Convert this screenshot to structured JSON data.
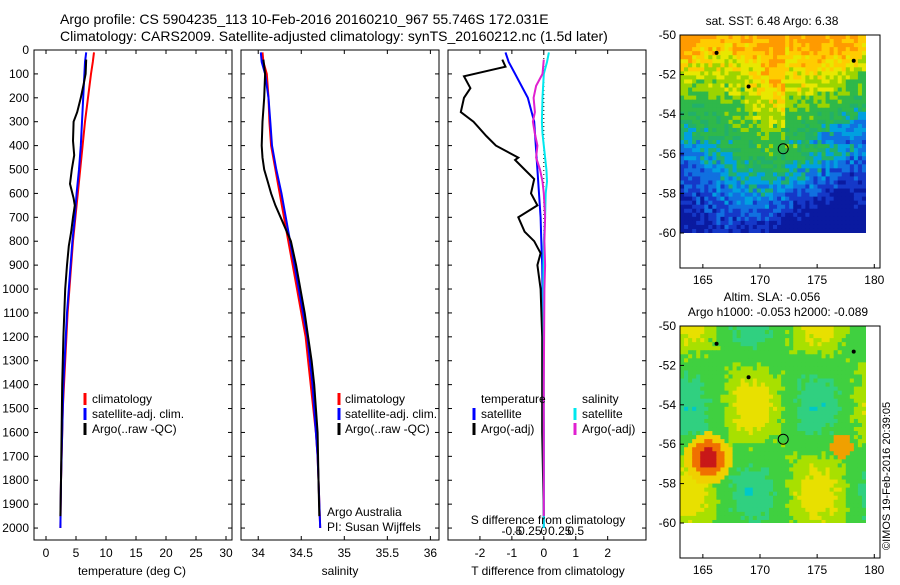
{
  "header": {
    "line1": "Argo profile: CS 5904235_113 10-Feb-2016 20160210_967 55.746S 172.031E",
    "line2": "Climatology: CARS2009. Satellite-adjusted climatology: synTS_20160212.nc (1.5d later)"
  },
  "colors": {
    "climatology": "#ff0000",
    "satellite": "#0000ff",
    "argo": "#000000",
    "sat_salinity": "#00e8ee",
    "argo_salinity": "#e020d0",
    "land": "#ffffff"
  },
  "chart_data": [
    {
      "type": "line",
      "xlabel": "temperature (deg C)",
      "ylabel": "",
      "xlim": [
        -2,
        31
      ],
      "ylim": [
        2050,
        0
      ],
      "xticks": [
        "0",
        "5",
        "10",
        "15",
        "20",
        "25",
        "30"
      ],
      "xtick_values": [
        0,
        5,
        10,
        15,
        20,
        25,
        30
      ],
      "yticks": [
        "0",
        "100",
        "200",
        "300",
        "400",
        "500",
        "600",
        "700",
        "800",
        "900",
        "1000",
        "1100",
        "1200",
        "1300",
        "1400",
        "1500",
        "1600",
        "1700",
        "1800",
        "1900",
        "2000"
      ],
      "ytick_values": [
        0,
        100,
        200,
        300,
        400,
        500,
        600,
        700,
        800,
        900,
        1000,
        1100,
        1200,
        1300,
        1400,
        1500,
        1600,
        1700,
        1800,
        1900,
        2000
      ],
      "legend": {
        "placement": "lower-center",
        "entries": [
          "climatology",
          "satellite-adj. clim.",
          "Argo(..raw -QC)"
        ]
      },
      "series": [
        {
          "name": "climatology",
          "color_key": "climatology",
          "x": [
            8.0,
            7.8,
            7.5,
            7.0,
            6.5,
            6.1,
            5.7,
            5.3,
            4.9,
            4.5,
            4.2,
            3.9,
            3.6,
            3.4,
            3.2,
            3.0,
            2.8,
            2.7,
            2.6,
            2.5,
            2.4
          ],
          "y": [
            10,
            50,
            100,
            200,
            300,
            400,
            500,
            600,
            700,
            800,
            900,
            1000,
            1100,
            1200,
            1300,
            1400,
            1500,
            1600,
            1700,
            1800,
            2000
          ]
        },
        {
          "name": "satellite-adj. clim.",
          "color_key": "satellite",
          "x": [
            6.7,
            6.5,
            6.4,
            6.2,
            6.0,
            5.8,
            5.5,
            5.1,
            4.8,
            4.4,
            4.1,
            3.8,
            3.5,
            3.3,
            3.1,
            2.9,
            2.8,
            2.7,
            2.6,
            2.5,
            2.4
          ],
          "y": [
            10,
            50,
            100,
            200,
            300,
            400,
            500,
            600,
            700,
            800,
            900,
            1000,
            1100,
            1200,
            1300,
            1400,
            1500,
            1600,
            1700,
            1800,
            2000
          ]
        },
        {
          "name": "Argo(..raw -QC)",
          "color_key": "argo",
          "x": [
            6.7,
            6.6,
            6.3,
            5.8,
            5.2,
            4.6,
            4.5,
            4.7,
            4.3,
            4.0,
            4.6,
            4.8,
            4.5,
            4.2,
            3.8,
            3.5,
            3.2,
            2.9,
            2.7,
            2.6,
            2.5,
            2.4
          ],
          "y": [
            40,
            100,
            140,
            200,
            260,
            300,
            380,
            440,
            500,
            560,
            620,
            650,
            700,
            760,
            820,
            900,
            1000,
            1200,
            1400,
            1600,
            1800,
            1950
          ]
        }
      ]
    },
    {
      "type": "line",
      "xlabel": "salinity",
      "ylabel": "",
      "xlim": [
        33.8,
        36.1
      ],
      "ylim": [
        2050,
        0
      ],
      "xticks": [
        "34",
        "34.5",
        "35",
        "35.5",
        "36"
      ],
      "xtick_values": [
        34,
        34.5,
        35,
        35.5,
        36
      ],
      "legend": {
        "placement": "lower-right",
        "entries": [
          "climatology",
          "satellite-adj. clim.",
          "Argo(..raw -QC)"
        ]
      },
      "annotations": [
        "Argo Australia",
        "PI: Susan Wijffels"
      ],
      "series": [
        {
          "name": "climatology",
          "color_key": "climatology",
          "x": [
            34.05,
            34.06,
            34.1,
            34.12,
            34.13,
            34.15,
            34.2,
            34.25,
            34.3,
            34.35,
            34.4,
            34.45,
            34.5,
            34.55,
            34.58,
            34.61,
            34.64,
            34.67,
            34.69,
            34.7,
            34.72
          ],
          "y": [
            10,
            50,
            100,
            200,
            300,
            400,
            500,
            600,
            700,
            800,
            900,
            1000,
            1100,
            1200,
            1300,
            1400,
            1500,
            1600,
            1700,
            1800,
            2000
          ]
        },
        {
          "name": "satellite-adj. clim.",
          "color_key": "satellite",
          "x": [
            34.03,
            34.04,
            34.08,
            34.12,
            34.14,
            34.16,
            34.21,
            34.27,
            34.32,
            34.37,
            34.42,
            34.47,
            34.52,
            34.57,
            34.6,
            34.63,
            34.65,
            34.67,
            34.69,
            34.7,
            34.72
          ],
          "y": [
            10,
            50,
            100,
            200,
            300,
            400,
            500,
            600,
            700,
            800,
            900,
            1000,
            1100,
            1200,
            1300,
            1400,
            1500,
            1600,
            1700,
            1800,
            2000
          ]
        },
        {
          "name": "Argo(..raw -QC)",
          "color_key": "argo",
          "x": [
            34.06,
            34.08,
            34.07,
            34.05,
            34.04,
            34.05,
            34.07,
            34.11,
            34.15,
            34.2,
            34.26,
            34.32,
            34.38,
            34.44,
            34.49,
            34.54,
            34.58,
            34.62,
            34.65,
            34.67,
            34.69,
            34.7,
            34.71
          ],
          "y": [
            40,
            100,
            200,
            300,
            400,
            450,
            500,
            550,
            600,
            650,
            700,
            750,
            800,
            900,
            1000,
            1100,
            1200,
            1300,
            1400,
            1500,
            1600,
            1800,
            1950
          ]
        }
      ]
    },
    {
      "type": "line",
      "xlabel": "T difference from climatology",
      "secondary_xlabel": "S difference from climatology",
      "ylabel": "",
      "xlim": [
        -3,
        3.2
      ],
      "ylim": [
        2050,
        0
      ],
      "xticks": [
        "-2",
        "-1",
        "0",
        "1",
        "2"
      ],
      "xtick_values": [
        -2,
        -1,
        0,
        1,
        2
      ],
      "secondary_xticks": [
        "-0.5",
        "-0.25",
        "0",
        "0.25",
        "0.5"
      ],
      "secondary_xtick_values": [
        -0.5,
        -0.25,
        0,
        0.25,
        0.5
      ],
      "legend": {
        "placement": "lower-center",
        "temperature_title": "temperature",
        "salinity_title": "salinity",
        "entries": [
          "satellite",
          "Argo(-adj)",
          "satellite",
          "Argo(-adj)"
        ]
      },
      "series": [
        {
          "name": "satellite",
          "group": "temperature",
          "color_key": "satellite",
          "x": [
            -1.2,
            -1.1,
            -0.9,
            -0.5,
            -0.3,
            -0.25,
            -0.2,
            -0.15,
            -0.1,
            -0.08,
            -0.05,
            -0.04,
            -0.03,
            -0.02,
            -0.02,
            -0.01,
            -0.01,
            0,
            0,
            0,
            0
          ],
          "y": [
            10,
            50,
            100,
            200,
            300,
            400,
            500,
            600,
            700,
            800,
            900,
            1000,
            1100,
            1200,
            1300,
            1400,
            1500,
            1600,
            1700,
            1800,
            2000
          ]
        },
        {
          "name": "Argo(-adj)",
          "group": "temperature",
          "color_key": "argo",
          "x": [
            -1.3,
            -1.2,
            -2.5,
            -2.3,
            -2.5,
            -2.6,
            -2.2,
            -1.8,
            -1.5,
            -0.8,
            -0.9,
            -0.6,
            -0.3,
            -0.4,
            -0.2,
            -0.8,
            -0.6,
            -0.3,
            -0.1,
            -0.2,
            -0.1,
            -0.05,
            -0.05,
            0
          ],
          "y": [
            40,
            70,
            110,
            160,
            200,
            260,
            300,
            360,
            400,
            450,
            460,
            500,
            540,
            600,
            650,
            700,
            760,
            800,
            850,
            900,
            1000,
            1200,
            1600,
            1950
          ]
        },
        {
          "name": "satellite",
          "group": "salinity",
          "color_key": "sat_salinity",
          "x": [
            0.08,
            0.05,
            0.0,
            -0.02,
            -0.03,
            -0.02,
            0.0,
            0.02,
            0.04,
            0.05,
            0.03,
            0.02,
            0.0,
            -0.01,
            0,
            0,
            0
          ],
          "y": [
            10,
            50,
            100,
            200,
            300,
            350,
            400,
            450,
            500,
            550,
            600,
            700,
            800,
            1000,
            1200,
            1600,
            2000
          ]
        },
        {
          "name": "Argo(-adj)",
          "group": "salinity",
          "color_key": "argo_salinity",
          "x": [
            0.0,
            -0.02,
            -0.12,
            -0.16,
            -0.14,
            -0.17,
            -0.14,
            -0.1,
            -0.12,
            -0.06,
            -0.02,
            0.0,
            0.02,
            0.01,
            0.02,
            0.01,
            0,
            0
          ],
          "y": [
            40,
            100,
            150,
            200,
            260,
            300,
            350,
            400,
            450,
            500,
            550,
            600,
            700,
            800,
            900,
            1000,
            1400,
            1950
          ]
        }
      ]
    }
  ],
  "maps": {
    "sst": {
      "title": "sat. SST: 6.48 Argo: 6.38",
      "xticks": [
        "165",
        "170",
        "175",
        "180"
      ],
      "xtick_values": [
        165,
        170,
        175,
        180
      ],
      "yticks": [
        "-50",
        "-52",
        "-54",
        "-56",
        "-58",
        "-60"
      ],
      "ytick_values": [
        -50,
        -52,
        -54,
        -56,
        -58,
        -60
      ],
      "lon_range": [
        163,
        180.5
      ],
      "lat_range": [
        -50,
        -60
      ],
      "float_lon": 172.031,
      "float_lat": -55.746
    },
    "sla": {
      "title_line1": "Altim. SLA: -0.056",
      "title_line2": "Argo h1000: -0.053 h2000: -0.089",
      "xticks": [
        "165",
        "170",
        "175",
        "180"
      ],
      "xtick_values": [
        165,
        170,
        175,
        180
      ],
      "yticks": [
        "-50",
        "-52",
        "-54",
        "-56",
        "-58",
        "-60"
      ],
      "ytick_values": [
        -50,
        -52,
        -54,
        -56,
        -58,
        -60
      ],
      "lon_range": [
        163,
        180.5
      ],
      "lat_range": [
        -50,
        -60
      ],
      "float_lon": 172.031,
      "float_lat": -55.746
    }
  },
  "credit": "©IMOS 19-Feb-2016 20:39:05"
}
